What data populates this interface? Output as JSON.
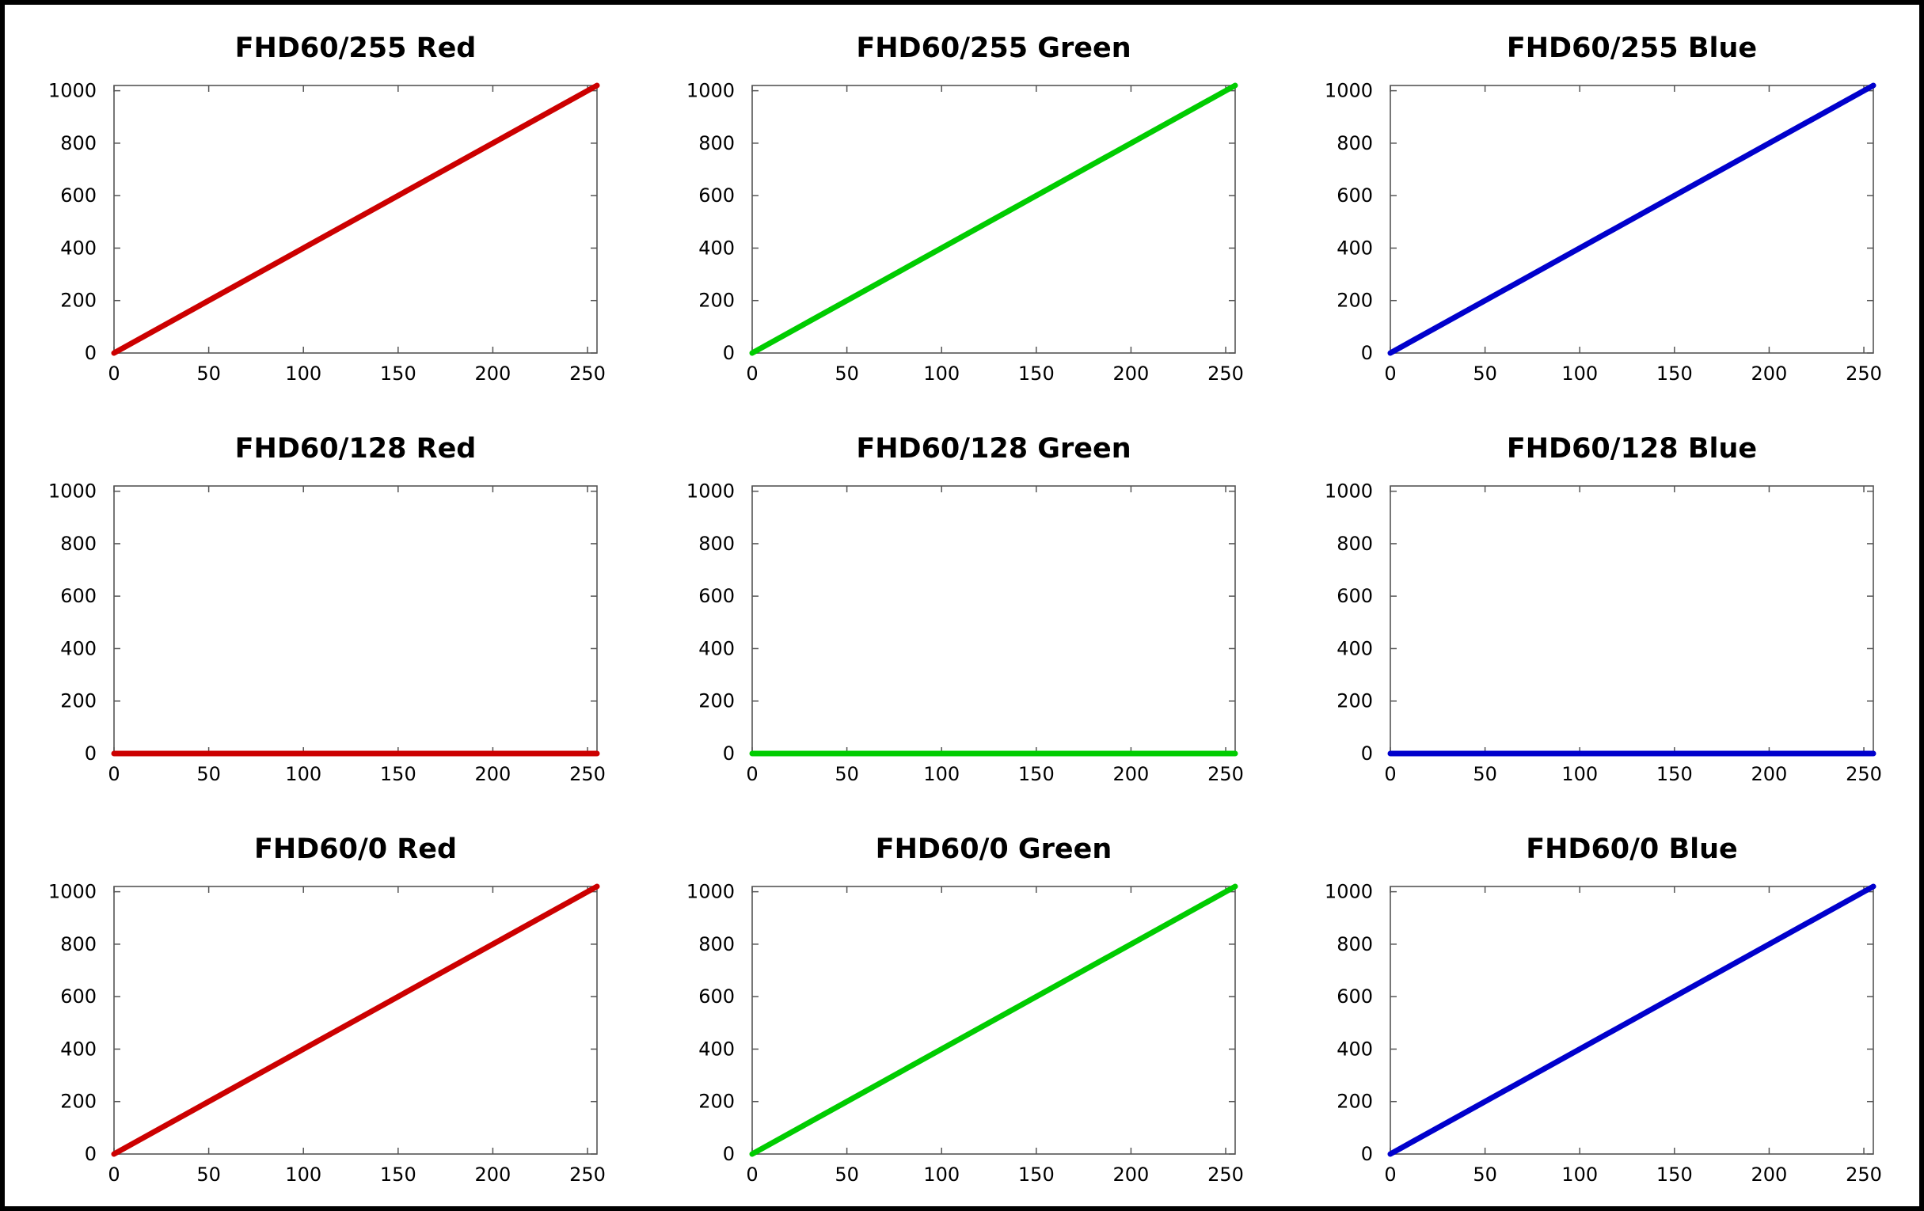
{
  "colors": {
    "red": "#cc0000",
    "green": "#00cc00",
    "blue": "#0000cc",
    "axis": "#555555",
    "frame": "#000000"
  },
  "chart_data": [
    {
      "type": "line",
      "title": "FHD60/255 Red",
      "color": "#cc0000",
      "x": [
        0,
        255
      ],
      "y": [
        0,
        1020
      ],
      "xlim": [
        0,
        255
      ],
      "ylim": [
        0,
        1020
      ],
      "xticks": [
        0,
        50,
        100,
        150,
        200,
        250
      ],
      "yticks": [
        0,
        200,
        400,
        600,
        800,
        1000
      ],
      "grid": false
    },
    {
      "type": "line",
      "title": "FHD60/255 Green",
      "color": "#00cc00",
      "x": [
        0,
        255
      ],
      "y": [
        0,
        1020
      ],
      "xlim": [
        0,
        255
      ],
      "ylim": [
        0,
        1020
      ],
      "xticks": [
        0,
        50,
        100,
        150,
        200,
        250
      ],
      "yticks": [
        0,
        200,
        400,
        600,
        800,
        1000
      ],
      "grid": false
    },
    {
      "type": "line",
      "title": "FHD60/255 Blue",
      "color": "#0000cc",
      "x": [
        0,
        255
      ],
      "y": [
        0,
        1020
      ],
      "xlim": [
        0,
        255
      ],
      "ylim": [
        0,
        1020
      ],
      "xticks": [
        0,
        50,
        100,
        150,
        200,
        250
      ],
      "yticks": [
        0,
        200,
        400,
        600,
        800,
        1000
      ],
      "grid": false
    },
    {
      "type": "line",
      "title": "FHD60/128 Red",
      "color": "#cc0000",
      "x": [
        0,
        255
      ],
      "y": [
        0,
        0
      ],
      "xlim": [
        0,
        255
      ],
      "ylim": [
        0,
        1020
      ],
      "xticks": [
        0,
        50,
        100,
        150,
        200,
        250
      ],
      "yticks": [
        0,
        200,
        400,
        600,
        800,
        1000
      ],
      "grid": false
    },
    {
      "type": "line",
      "title": "FHD60/128 Green",
      "color": "#00cc00",
      "x": [
        0,
        255
      ],
      "y": [
        0,
        0
      ],
      "xlim": [
        0,
        255
      ],
      "ylim": [
        0,
        1020
      ],
      "xticks": [
        0,
        50,
        100,
        150,
        200,
        250
      ],
      "yticks": [
        0,
        200,
        400,
        600,
        800,
        1000
      ],
      "grid": false
    },
    {
      "type": "line",
      "title": "FHD60/128 Blue",
      "color": "#0000cc",
      "x": [
        0,
        255
      ],
      "y": [
        0,
        0
      ],
      "xlim": [
        0,
        255
      ],
      "ylim": [
        0,
        1020
      ],
      "xticks": [
        0,
        50,
        100,
        150,
        200,
        250
      ],
      "yticks": [
        0,
        200,
        400,
        600,
        800,
        1000
      ],
      "grid": false
    },
    {
      "type": "line",
      "title": "FHD60/0 Red",
      "color": "#cc0000",
      "x": [
        0,
        255
      ],
      "y": [
        0,
        1020
      ],
      "xlim": [
        0,
        255
      ],
      "ylim": [
        0,
        1020
      ],
      "xticks": [
        0,
        50,
        100,
        150,
        200,
        250
      ],
      "yticks": [
        0,
        200,
        400,
        600,
        800,
        1000
      ],
      "grid": false
    },
    {
      "type": "line",
      "title": "FHD60/0 Green",
      "color": "#00cc00",
      "x": [
        0,
        255
      ],
      "y": [
        0,
        1020
      ],
      "xlim": [
        0,
        255
      ],
      "ylim": [
        0,
        1020
      ],
      "xticks": [
        0,
        50,
        100,
        150,
        200,
        250
      ],
      "yticks": [
        0,
        200,
        400,
        600,
        800,
        1000
      ],
      "grid": false
    },
    {
      "type": "line",
      "title": "FHD60/0 Blue",
      "color": "#0000cc",
      "x": [
        0,
        255
      ],
      "y": [
        0,
        1020
      ],
      "xlim": [
        0,
        255
      ],
      "ylim": [
        0,
        1020
      ],
      "xticks": [
        0,
        50,
        100,
        150,
        200,
        250
      ],
      "yticks": [
        0,
        200,
        400,
        600,
        800,
        1000
      ],
      "grid": false
    }
  ]
}
